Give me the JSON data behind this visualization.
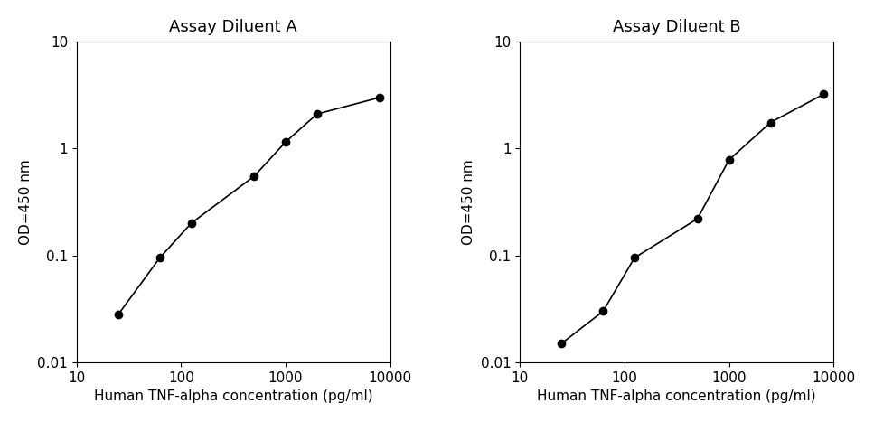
{
  "panel_A": {
    "title": "Assay Diluent A",
    "x": [
      25,
      62.5,
      125,
      500,
      1000,
      2000,
      8000
    ],
    "y": [
      0.028,
      0.095,
      0.2,
      0.55,
      1.15,
      2.1,
      3.0
    ],
    "xlabel": "Human TNF-alpha concentration (pg/ml)",
    "ylabel": "OD=450 nm",
    "xlim": [
      10,
      10000
    ],
    "ylim": [
      0.01,
      10
    ]
  },
  "panel_B": {
    "title": "Assay Diluent B",
    "x": [
      25,
      62.5,
      125,
      500,
      1000,
      2500,
      8000
    ],
    "y": [
      0.015,
      0.03,
      0.095,
      0.22,
      0.78,
      1.75,
      3.2
    ],
    "xlabel": "Human TNF-alpha concentration (pg/ml)",
    "ylabel": "OD=450 nm",
    "xlim": [
      10,
      10000
    ],
    "ylim": [
      0.01,
      10
    ]
  },
  "line_color": "#000000",
  "marker_color": "#000000",
  "marker_size": 6,
  "line_width": 1.2,
  "title_fontsize": 13,
  "label_fontsize": 11,
  "tick_fontsize": 11,
  "background_color": "#ffffff"
}
